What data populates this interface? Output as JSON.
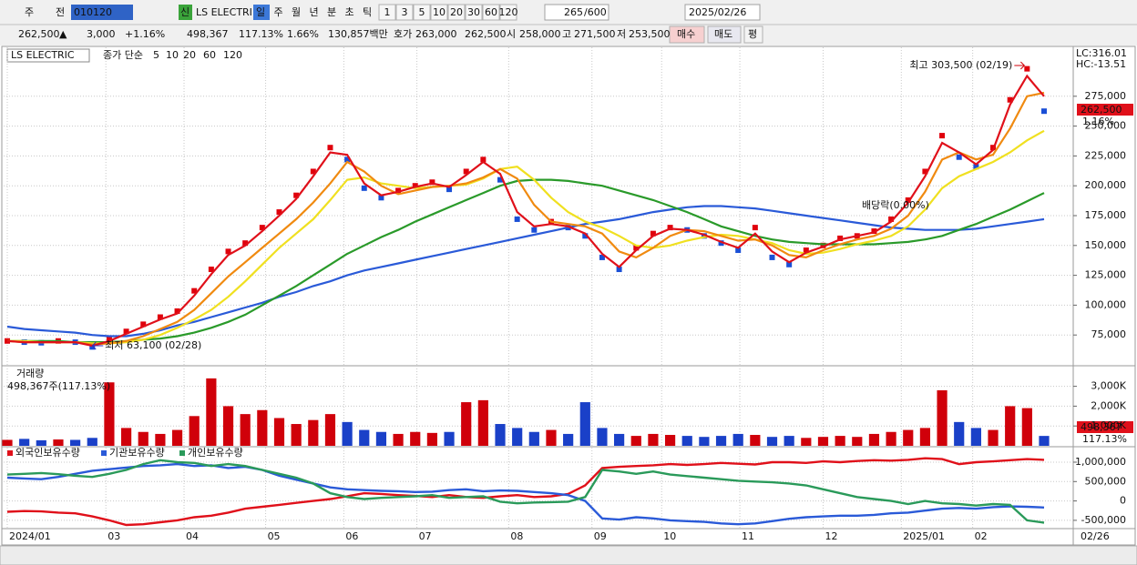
{
  "toolbar": {
    "period_label": "주",
    "prev_label": "전",
    "code": "010120",
    "name": "LS ELECTRI",
    "new_label": "신",
    "intervals": [
      "일",
      "주",
      "월",
      "년",
      "분",
      "초",
      "틱"
    ],
    "counts": [
      1,
      3,
      5,
      10,
      20,
      30,
      60,
      120
    ],
    "visible_count": 265,
    "max_count": "/600",
    "date": "2025/02/26"
  },
  "quote": {
    "price": "262,500",
    "change_arrow": "▲",
    "change": "3,000",
    "change_pct": "+1.16%",
    "volume": "498,367",
    "volume_ratio": "117.13%",
    "turnover": "1.66%",
    "amount": "130,857백만",
    "quote_label": "호가",
    "ask": "263,000",
    "bid": "262,500",
    "open_label": "시",
    "open": "258,000",
    "high_label": "고",
    "high": "271,500",
    "low_label": "저",
    "low": "253,500",
    "buy": "매수",
    "sell": "매도",
    "avg": "평"
  },
  "chart_data": [
    {
      "type": "price",
      "title": "LS ELECTRIC",
      "legend_title": "종가 단순",
      "up_color": "#e0000c",
      "down_color": "#1a4fd6",
      "values": [
        70000,
        69000,
        68500,
        70000,
        69000,
        65000,
        72000,
        78000,
        84000,
        90000,
        95000,
        112000,
        130000,
        145000,
        152000,
        165000,
        178000,
        192000,
        212000,
        232000,
        222000,
        198000,
        190000,
        196000,
        200000,
        203000,
        197000,
        212000,
        222000,
        205000,
        172000,
        163000,
        170000,
        165000,
        158000,
        140000,
        130000,
        148000,
        160000,
        165000,
        163000,
        158000,
        152000,
        146000,
        165000,
        140000,
        134000,
        146000,
        150000,
        156000,
        158000,
        162000,
        172000,
        188000,
        212000,
        242000,
        224000,
        216000,
        232000,
        272000,
        298000,
        262500
      ],
      "series": [
        {
          "name": "5",
          "color": "#e0101a",
          "values": [
            70000,
            69000,
            69000,
            69000,
            69000,
            66000,
            70000,
            76000,
            82000,
            88000,
            93000,
            108000,
            126000,
            142000,
            150000,
            162000,
            175000,
            189000,
            208000,
            228000,
            226000,
            202000,
            192000,
            195000,
            199000,
            202000,
            199000,
            209000,
            220000,
            210000,
            178000,
            166000,
            168000,
            166000,
            160000,
            143000,
            132000,
            146000,
            158000,
            164000,
            163000,
            159000,
            153000,
            148000,
            160000,
            145000,
            136000,
            144000,
            149000,
            155000,
            158000,
            161000,
            170000,
            186000,
            208000,
            236000,
            228000,
            218000,
            230000,
            268000,
            292000,
            275000
          ]
        },
        {
          "name": "10",
          "color": "#f08a10",
          "values": [
            70000,
            69000,
            69000,
            69000,
            69000,
            67000,
            68000,
            70000,
            74000,
            80000,
            86000,
            96000,
            110000,
            124000,
            136000,
            148000,
            160000,
            172000,
            186000,
            202000,
            220000,
            212000,
            200000,
            193000,
            196000,
            199000,
            200000,
            202000,
            207000,
            214000,
            206000,
            184000,
            170000,
            168000,
            166000,
            160000,
            145000,
            140000,
            148000,
            158000,
            163000,
            162000,
            158000,
            154000,
            155000,
            150000,
            142000,
            140000,
            146000,
            151000,
            155000,
            158000,
            164000,
            175000,
            195000,
            222000,
            228000,
            222000,
            226000,
            248000,
            275000,
            278000
          ]
        },
        {
          "name": "20",
          "color": "#f0e020",
          "values": [
            70000,
            70000,
            69000,
            69000,
            69000,
            68000,
            68000,
            69000,
            71000,
            75000,
            81000,
            88000,
            96000,
            107000,
            120000,
            134000,
            148000,
            160000,
            172000,
            188000,
            205000,
            207000,
            202000,
            200000,
            198000,
            199000,
            200000,
            201000,
            206000,
            214000,
            216000,
            205000,
            190000,
            178000,
            170000,
            165000,
            158000,
            150000,
            148000,
            150000,
            154000,
            157000,
            159000,
            158000,
            155000,
            152000,
            146000,
            143000,
            144000,
            147000,
            151000,
            154000,
            158000,
            166000,
            180000,
            198000,
            208000,
            214000,
            220000,
            228000,
            238000,
            246000
          ]
        },
        {
          "name": "60",
          "color": "#2a9a2a",
          "values": [
            70000,
            70000,
            70000,
            70000,
            69000,
            69000,
            69000,
            70000,
            71000,
            72000,
            74000,
            77000,
            81000,
            86000,
            92000,
            100000,
            108000,
            116000,
            125000,
            134000,
            143000,
            150000,
            157000,
            163000,
            170000,
            176000,
            182000,
            188000,
            194000,
            200000,
            204000,
            205000,
            205000,
            204000,
            202000,
            200000,
            196000,
            192000,
            188000,
            183000,
            178000,
            172000,
            166000,
            162000,
            158000,
            155000,
            153000,
            152000,
            151000,
            151000,
            151000,
            151000,
            152000,
            153000,
            155000,
            158000,
            163000,
            168000,
            174000,
            180000,
            187000,
            194000
          ]
        },
        {
          "name": "120",
          "color": "#2a5ad8",
          "values": [
            82000,
            80000,
            79000,
            78000,
            77000,
            75000,
            74000,
            74000,
            76000,
            79000,
            83000,
            86000,
            90000,
            94000,
            98000,
            102000,
            107000,
            111000,
            116000,
            120000,
            125000,
            129000,
            132000,
            135000,
            138000,
            141000,
            144000,
            147000,
            150000,
            153000,
            156000,
            159000,
            162000,
            165000,
            168000,
            170000,
            172000,
            175000,
            178000,
            180000,
            182000,
            183000,
            183000,
            182000,
            181000,
            179000,
            177000,
            175000,
            173000,
            171000,
            169000,
            167000,
            165000,
            164000,
            163000,
            163000,
            163000,
            164000,
            166000,
            168000,
            170000,
            172000
          ]
        }
      ],
      "ylim": [
        50000,
        316000
      ],
      "yticks": [
        {
          "value": 75000,
          "label": "75,000"
        },
        {
          "value": 100000,
          "label": "100,000"
        },
        {
          "value": 125000,
          "label": "125,000"
        },
        {
          "value": 150000,
          "label": "150,000"
        },
        {
          "value": 175000,
          "label": "175,000"
        },
        {
          "value": 200000,
          "label": "200,000"
        },
        {
          "value": 225000,
          "label": "225,000"
        },
        {
          "value": 250000,
          "label": "250,000"
        },
        {
          "value": 275000,
          "label": "275,000"
        }
      ],
      "high_note": "최고 303,500 (02/19)",
      "low_note": "최저 63,100 (02/28)",
      "dividend_note": "배당락(0.00%)",
      "lc_label": "LC:316.01",
      "hc_label": "HC:-13.51",
      "last_label": "262,500",
      "last_change": "1.16%"
    },
    {
      "type": "bar",
      "title": "거래량",
      "info": "498,367주(117.13%)",
      "last_label": "498,367",
      "last_ratio": "117.13%",
      "values": [
        300000,
        350000,
        280000,
        320000,
        300000,
        400000,
        3200000,
        900000,
        700000,
        600000,
        800000,
        1500000,
        3400000,
        2000000,
        1600000,
        1800000,
        1400000,
        1100000,
        1300000,
        1600000,
        1200000,
        800000,
        700000,
        600000,
        700000,
        650000,
        700000,
        2200000,
        2300000,
        1100000,
        900000,
        700000,
        800000,
        600000,
        2200000,
        900000,
        600000,
        500000,
        600000,
        550000,
        500000,
        450000,
        500000,
        600000,
        550000,
        450000,
        500000,
        400000,
        450000,
        500000,
        450000,
        600000,
        700000,
        800000,
        900000,
        2800000,
        1200000,
        900000,
        800000,
        2000000,
        1900000,
        498367
      ],
      "ylim": [
        0,
        3900000
      ],
      "yticks": [
        {
          "value": 1000000,
          "label": "1,000K"
        },
        {
          "value": 2000000,
          "label": "2,000K"
        },
        {
          "value": 3000000,
          "label": "3,000K"
        }
      ]
    },
    {
      "type": "line",
      "series": [
        {
          "name": "외국인보유수량",
          "color": "#e0101a",
          "values": [
            -280000,
            -260000,
            -270000,
            -300000,
            -320000,
            -400000,
            -500000,
            -620000,
            -600000,
            -550000,
            -500000,
            -420000,
            -380000,
            -300000,
            -200000,
            -150000,
            -100000,
            -50000,
            0,
            50000,
            120000,
            200000,
            180000,
            150000,
            130000,
            100000,
            150000,
            100000,
            80000,
            120000,
            150000,
            100000,
            120000,
            180000,
            400000,
            850000,
            880000,
            900000,
            920000,
            950000,
            930000,
            950000,
            980000,
            960000,
            940000,
            1000000,
            1000000,
            980000,
            1020000,
            1000000,
            1030000,
            1050000,
            1040000,
            1060000,
            1100000,
            1080000,
            950000,
            1000000,
            1020000,
            1050000,
            1080000,
            1060000
          ]
        },
        {
          "name": "기관보유수량",
          "color": "#2a5ad8",
          "values": [
            600000,
            580000,
            560000,
            620000,
            700000,
            780000,
            820000,
            860000,
            900000,
            920000,
            950000,
            900000,
            920000,
            850000,
            880000,
            800000,
            650000,
            550000,
            450000,
            350000,
            300000,
            280000,
            260000,
            250000,
            230000,
            240000,
            280000,
            300000,
            250000,
            270000,
            260000,
            230000,
            200000,
            150000,
            0,
            -450000,
            -480000,
            -420000,
            -450000,
            -500000,
            -520000,
            -540000,
            -580000,
            -600000,
            -580000,
            -520000,
            -460000,
            -420000,
            -400000,
            -380000,
            -380000,
            -360000,
            -320000,
            -300000,
            -250000,
            -200000,
            -180000,
            -200000,
            -160000,
            -140000,
            -150000,
            -170000
          ]
        },
        {
          "name": "개인보유수량",
          "color": "#2a9a5a",
          "values": [
            680000,
            700000,
            720000,
            690000,
            650000,
            620000,
            700000,
            800000,
            950000,
            1050000,
            1000000,
            980000,
            900000,
            950000,
            900000,
            800000,
            700000,
            600000,
            450000,
            200000,
            100000,
            50000,
            80000,
            100000,
            120000,
            150000,
            80000,
            100000,
            120000,
            -20000,
            -60000,
            -40000,
            -30000,
            -20000,
            100000,
            800000,
            760000,
            700000,
            760000,
            680000,
            640000,
            600000,
            560000,
            520000,
            500000,
            480000,
            450000,
            400000,
            300000,
            200000,
            100000,
            50000,
            0,
            -80000,
            0,
            -60000,
            -80000,
            -120000,
            -80000,
            -100000,
            -500000,
            -560000
          ]
        }
      ],
      "ylim": [
        -690000,
        1375000
      ],
      "yticks": [
        {
          "value": -500000,
          "label": "-500,000"
        },
        0,
        {
          "value": 500000,
          "label": "500,000"
        },
        {
          "value": 1000000,
          "label": "1,000,000"
        }
      ],
      "xlim": [
        0,
        61
      ],
      "xticks": [
        {
          "value": 0,
          "label": "2024/01"
        },
        {
          "value": 5.8,
          "label": "03"
        },
        {
          "value": 10.4,
          "label": "04"
        },
        {
          "value": 15.2,
          "label": "05"
        },
        {
          "value": 19.8,
          "label": "06"
        },
        {
          "value": 24.1,
          "label": "07"
        },
        {
          "value": 29.5,
          "label": "08"
        },
        {
          "value": 34.4,
          "label": "09"
        },
        {
          "value": 38.5,
          "label": "10"
        },
        {
          "value": 43.1,
          "label": "11"
        },
        {
          "value": 48,
          "label": "12"
        },
        {
          "value": 52.6,
          "label": "2025/01"
        },
        {
          "value": 56.8,
          "label": "02"
        }
      ],
      "current_label": "02/26"
    }
  ]
}
